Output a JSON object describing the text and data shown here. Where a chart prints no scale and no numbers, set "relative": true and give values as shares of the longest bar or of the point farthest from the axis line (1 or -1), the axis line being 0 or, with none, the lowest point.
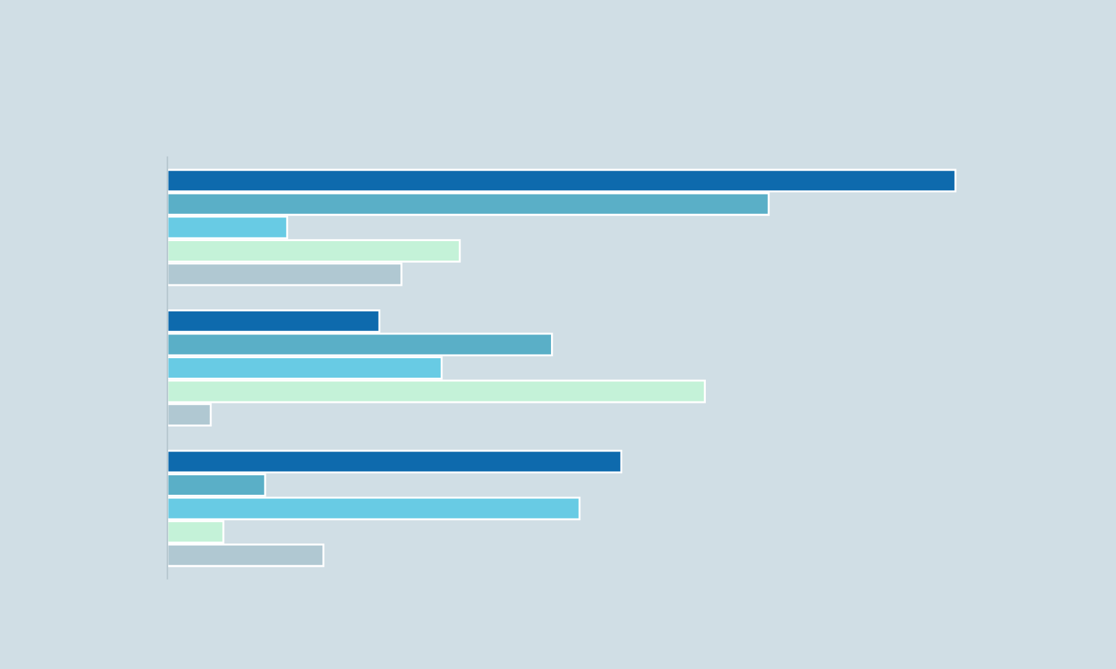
{
  "chart_data": {
    "type": "bar",
    "orientation": "horizontal",
    "relative": true,
    "categories": [
      null,
      null,
      null
    ],
    "series": [
      {
        "color": "#0e6aad",
        "values": [
          1.0,
          0.269,
          0.576
        ]
      },
      {
        "color": "#5aafc7",
        "values": [
          0.763,
          0.488,
          0.124
        ]
      },
      {
        "color": "#68cbe4",
        "values": [
          0.152,
          0.348,
          0.523
        ]
      },
      {
        "color": "#c4f2d8",
        "values": [
          0.371,
          0.682,
          0.071
        ]
      },
      {
        "color": "#b0c8d2",
        "values": [
          0.297,
          0.055,
          0.198
        ]
      }
    ]
  }
}
